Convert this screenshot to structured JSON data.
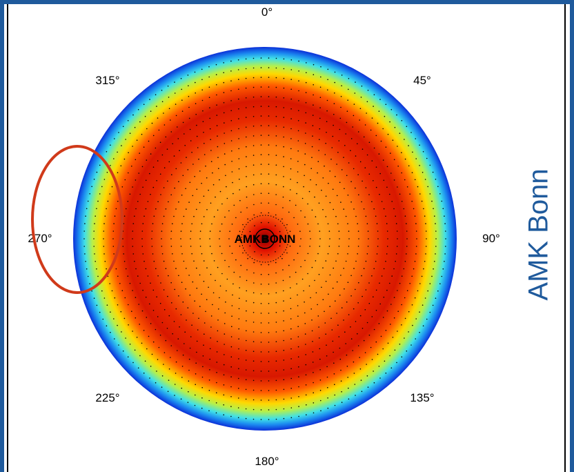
{
  "side_title": "AMK Bonn",
  "chart_data": {
    "type": "heatmap",
    "projection": "polar",
    "station_label": "AMKBONN",
    "angle_labels": [
      "0°",
      "45°",
      "90°",
      "135°",
      "180°",
      "225°",
      "270°",
      "315°"
    ],
    "colormap": [
      "#0b2fd8",
      "#1f9ff0",
      "#36e6e6",
      "#c8f040",
      "#ffe600",
      "#ffaa00",
      "#ff5a00",
      "#e81400",
      "#b50000"
    ],
    "grid": "dotted",
    "highlight": {
      "shape": "ellipse",
      "color": "#d03a1a",
      "direction_deg": 270
    }
  }
}
